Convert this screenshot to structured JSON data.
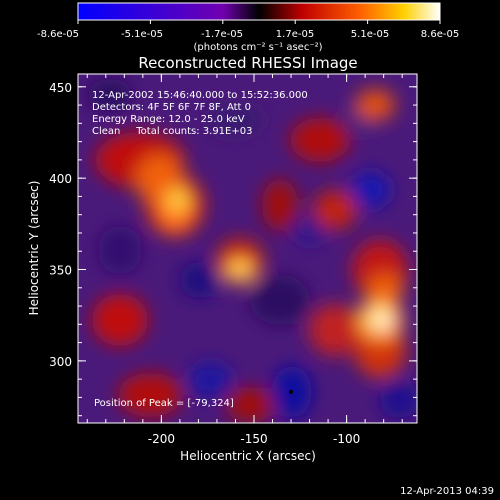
{
  "colorbar": {
    "tick_labels": [
      "-8.6e-05",
      "-5.1e-05",
      "-1.7e-05",
      "1.7e-05",
      "5.1e-05",
      "8.6e-05"
    ],
    "units_label": "(photons cm⁻² s⁻¹ asec⁻²)"
  },
  "image": {
    "title": "Reconstructed RHESSI Image",
    "xlabel": "Heliocentric X (arcsec)",
    "ylabel": "Heliocentric Y (arcsec)",
    "x_ticks": [
      {
        "label": "-200",
        "value": -200
      },
      {
        "label": "-150",
        "value": -150
      },
      {
        "label": "-100",
        "value": -100
      }
    ],
    "y_ticks": [
      {
        "label": "450",
        "value": 450
      },
      {
        "label": "400",
        "value": 400
      },
      {
        "label": "350",
        "value": 350
      },
      {
        "label": "300",
        "value": 300
      }
    ],
    "xlim": [
      -245,
      -62
    ],
    "ylim": [
      266,
      457
    ],
    "info_lines": [
      "12-Apr-2002 15:46:40.000 to 15:52:36.000",
      "Detectors: 4F 5F 6F 7F 8F, Att 0",
      "Energy Range: 12.0 - 25.0 keV",
      "Clean     Total counts: 3.91E+03"
    ],
    "peak_text": "Position of Peak = [-79,324]",
    "peak": {
      "x": -79,
      "y": 324
    }
  },
  "footer": {
    "timestamp": "12-Apr-2013 04:39"
  }
}
